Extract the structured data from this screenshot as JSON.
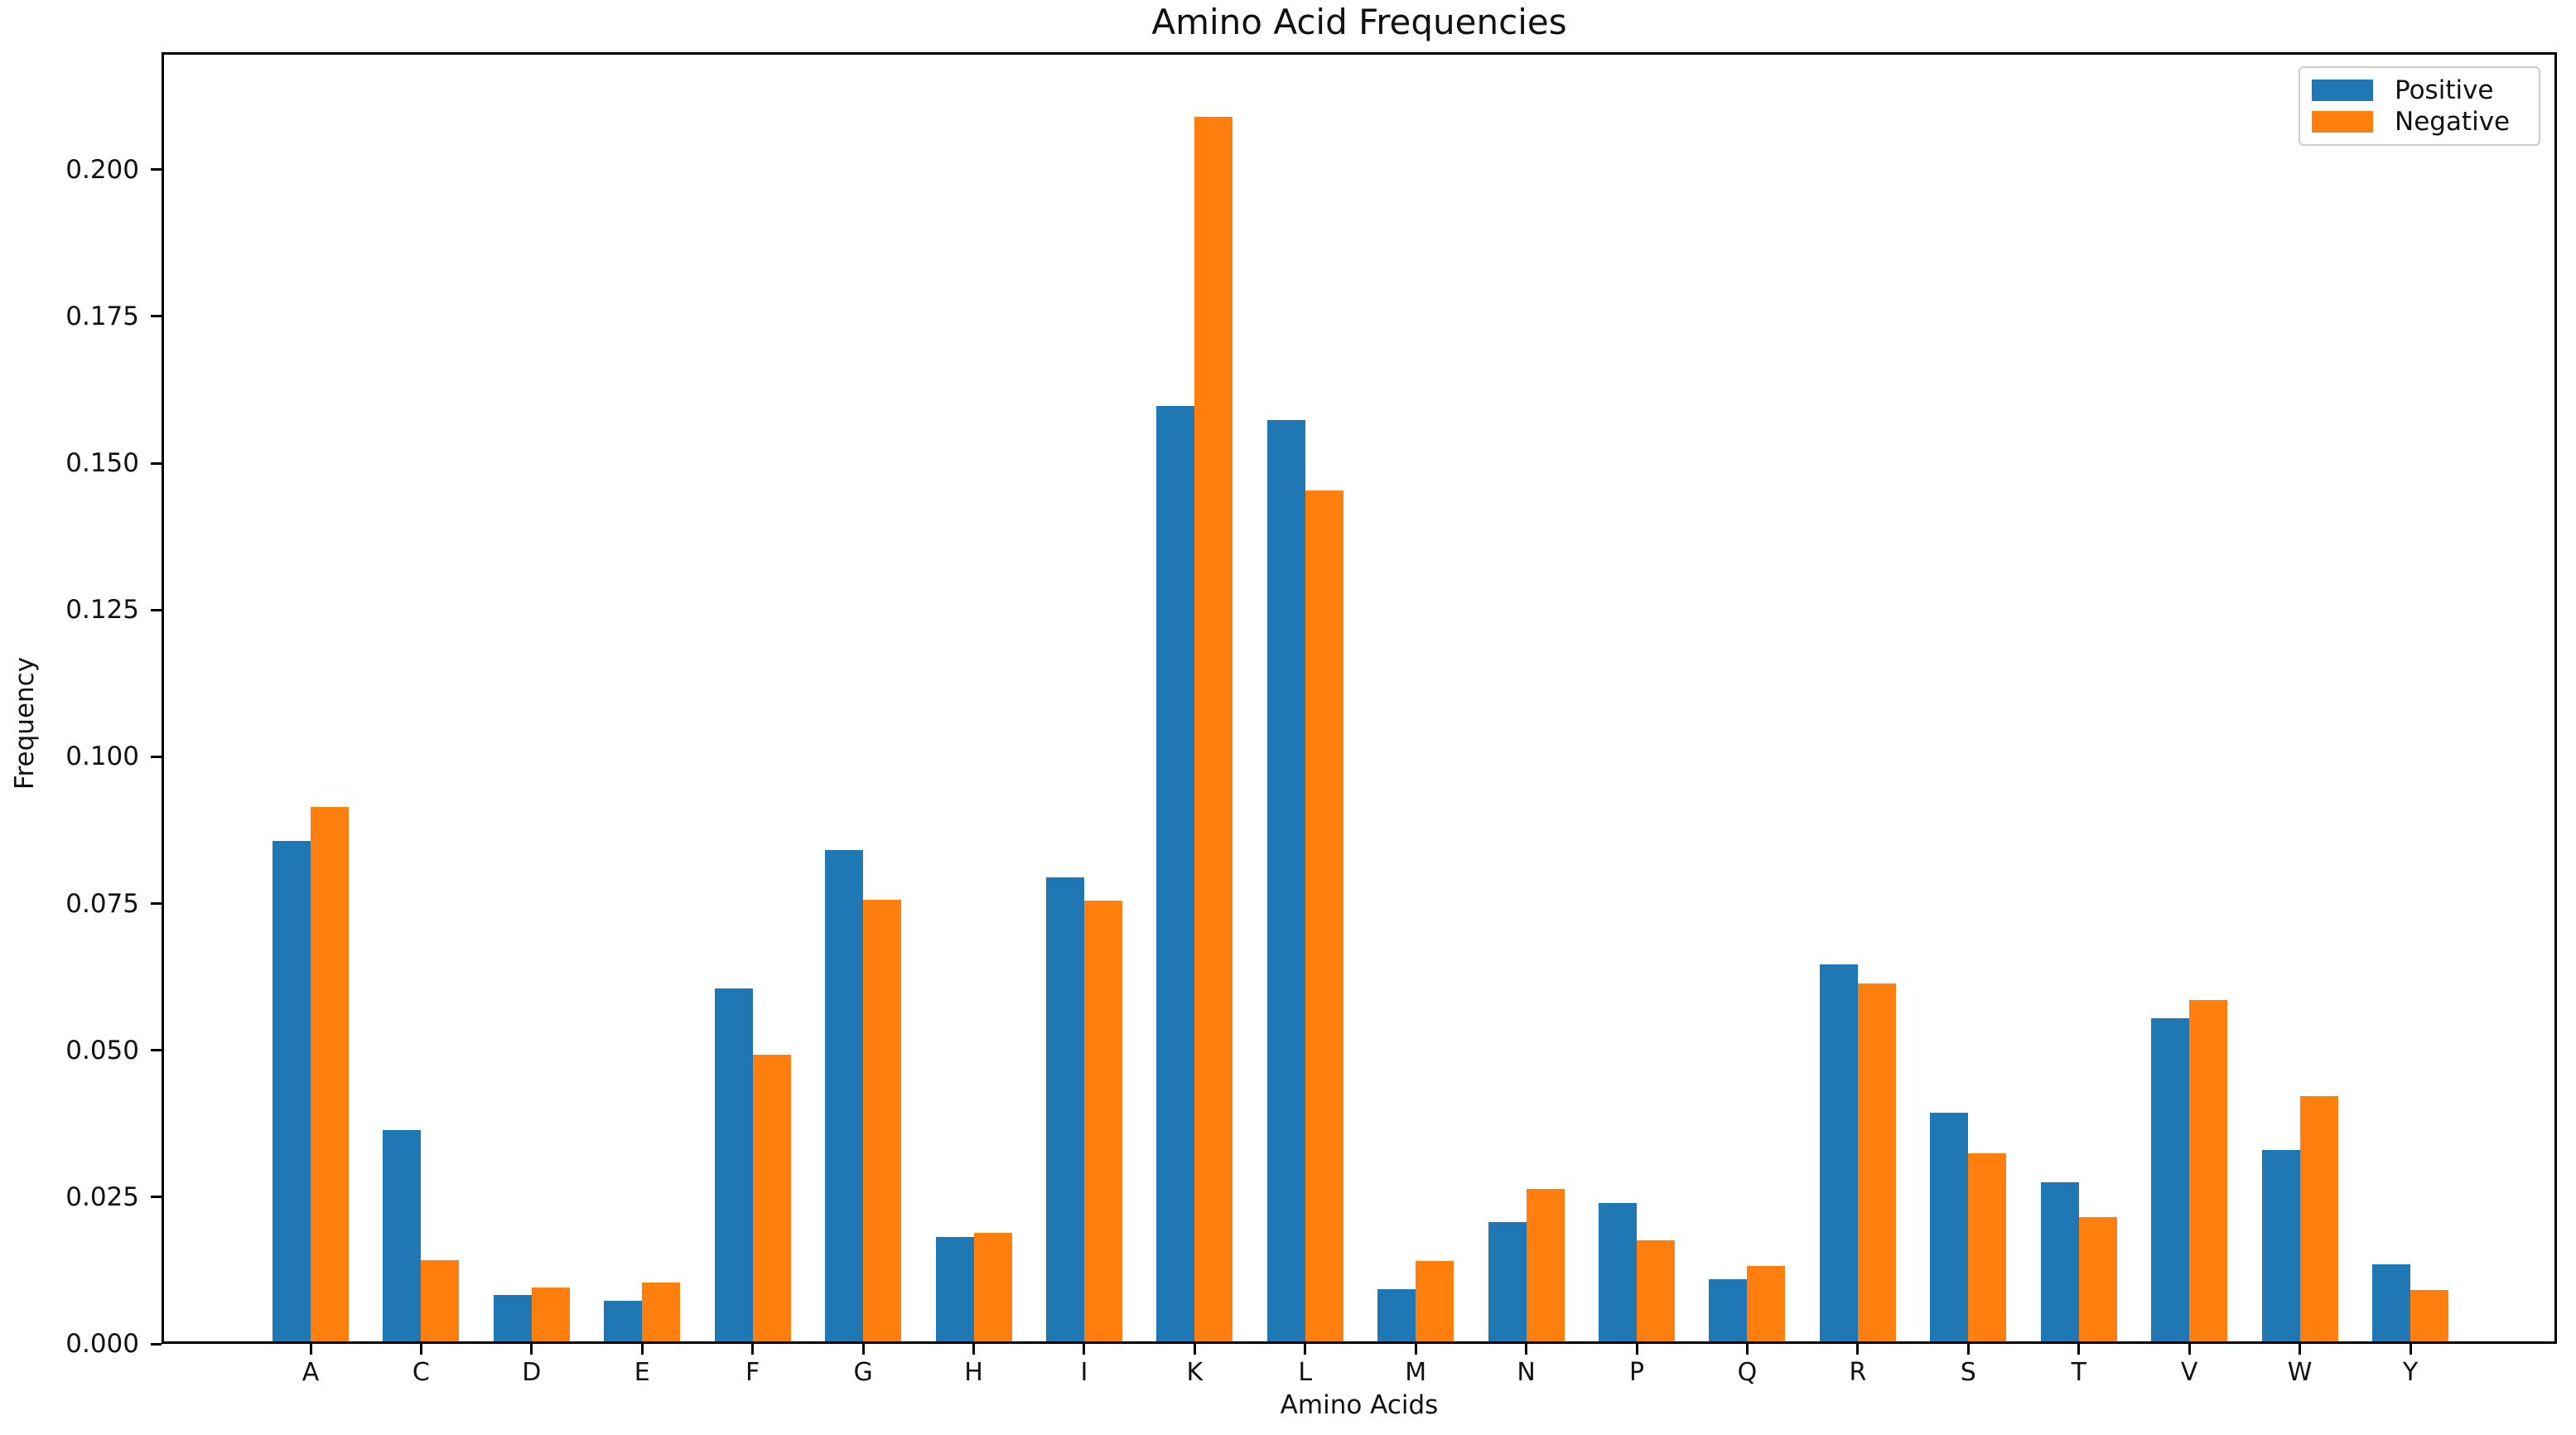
{
  "title": "Amino Acid Frequencies",
  "colors": {
    "positive": "#1f77b4",
    "negative": "#ff7f0e",
    "axis": "#000000",
    "background": "#ffffff",
    "legend_border": "#cccccc"
  },
  "legend": {
    "position": "upper right",
    "items": [
      {
        "label": "Positive",
        "color": "#1f77b4"
      },
      {
        "label": "Negative",
        "color": "#ff7f0e"
      }
    ]
  },
  "chart_data": {
    "type": "bar",
    "title": "Amino Acid Frequencies",
    "xlabel": "Amino Acids",
    "ylabel": "Frequency",
    "categories": [
      "A",
      "C",
      "D",
      "E",
      "F",
      "G",
      "H",
      "I",
      "K",
      "L",
      "M",
      "N",
      "P",
      "Q",
      "R",
      "S",
      "T",
      "V",
      "W",
      "Y"
    ],
    "series": [
      {
        "name": "Positive",
        "color": "#1f77b4",
        "values": [
          0.0856,
          0.0364,
          0.0083,
          0.0073,
          0.0605,
          0.0841,
          0.0182,
          0.0795,
          0.1598,
          0.1574,
          0.0093,
          0.0207,
          0.024,
          0.011,
          0.0647,
          0.0394,
          0.0275,
          0.0554,
          0.033,
          0.0135
        ]
      },
      {
        "name": "Negative",
        "color": "#ff7f0e",
        "values": [
          0.0915,
          0.0142,
          0.0096,
          0.0104,
          0.0492,
          0.0757,
          0.0189,
          0.0755,
          0.209,
          0.1454,
          0.0141,
          0.0264,
          0.0176,
          0.0133,
          0.0614,
          0.0324,
          0.0216,
          0.0585,
          0.0422,
          0.0092
        ]
      }
    ],
    "ylim": [
      0,
      0.22
    ],
    "y_ticks": [
      0.0,
      0.025,
      0.05,
      0.075,
      0.1,
      0.125,
      0.15,
      0.175,
      0.2
    ],
    "y_tick_labels": [
      "0.000",
      "0.025",
      "0.050",
      "0.075",
      "0.100",
      "0.125",
      "0.150",
      "0.175",
      "0.200"
    ],
    "grid": false,
    "legend_position": "upper right"
  }
}
